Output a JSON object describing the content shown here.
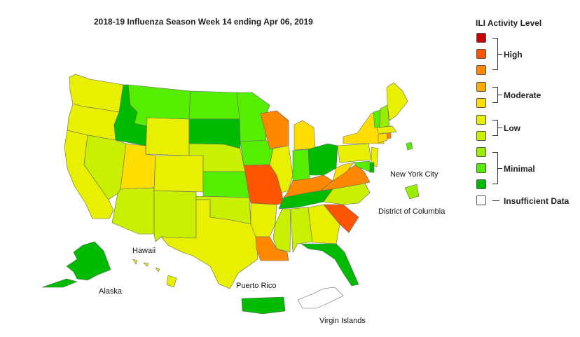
{
  "title": "2018-19 Influenza Season Week 14 ending Apr 06, 2019",
  "legend": {
    "title": "ILI Activity Level",
    "swatches": [
      {
        "color": "#cc0000"
      },
      {
        "color": "#ff5500"
      },
      {
        "color": "#ff8800"
      },
      {
        "color": "#ffaa00"
      },
      {
        "color": "#ffdd00"
      },
      {
        "color": "#e8f000"
      },
      {
        "color": "#c8f000"
      },
      {
        "color": "#99ee00"
      },
      {
        "color": "#55ee00"
      },
      {
        "color": "#00bb00"
      },
      {
        "color": "#ffffff"
      }
    ],
    "groups": {
      "high": "High",
      "moderate": "Moderate",
      "low": "Low",
      "minimal": "Minimal",
      "insufficient": "Insufficient Data"
    }
  },
  "labels": {
    "new_york_city": "New York City",
    "district_of_columbia": "District of Columbia",
    "hawaii": "Hawaii",
    "alaska": "Alaska",
    "puerto_rico": "Puerto Rico",
    "virgin_islands": "Virgin Islands"
  },
  "colors": {
    "low_yellow": "#e8f000",
    "low_lime": "#c8f000",
    "minimal_light": "#99ee00",
    "minimal": "#55ee00",
    "minimal_dark": "#00bb00",
    "moderate_yellow": "#ffdd00",
    "moderate_orange": "#ffaa00",
    "high_orange": "#ff8800",
    "high_red": "#ff5500",
    "insufficient": "#ffffff"
  },
  "states": [
    {
      "name": "Washington",
      "level": "low_yellow"
    },
    {
      "name": "Oregon",
      "level": "low_yellow"
    },
    {
      "name": "California",
      "level": "low_yellow"
    },
    {
      "name": "Nevada",
      "level": "low_lime"
    },
    {
      "name": "Idaho",
      "level": "minimal_dark"
    },
    {
      "name": "Montana",
      "level": "minimal"
    },
    {
      "name": "Wyoming",
      "level": "low_yellow"
    },
    {
      "name": "Utah",
      "level": "moderate_yellow"
    },
    {
      "name": "Arizona",
      "level": "low_lime"
    },
    {
      "name": "Colorado",
      "level": "low_yellow"
    },
    {
      "name": "New Mexico",
      "level": "low_lime"
    },
    {
      "name": "North Dakota",
      "level": "minimal"
    },
    {
      "name": "South Dakota",
      "level": "minimal_dark"
    },
    {
      "name": "Nebraska",
      "level": "low_lime"
    },
    {
      "name": "Kansas",
      "level": "minimal"
    },
    {
      "name": "Oklahoma",
      "level": "low_lime"
    },
    {
      "name": "Texas",
      "level": "low_yellow"
    },
    {
      "name": "Minnesota",
      "level": "minimal"
    },
    {
      "name": "Iowa",
      "level": "minimal"
    },
    {
      "name": "Missouri",
      "level": "high_red"
    },
    {
      "name": "Arkansas",
      "level": "low_yellow"
    },
    {
      "name": "Louisiana",
      "level": "high_orange"
    },
    {
      "name": "Wisconsin",
      "level": "high_orange"
    },
    {
      "name": "Illinois",
      "level": "low_yellow"
    },
    {
      "name": "Michigan",
      "level": "moderate_yellow"
    },
    {
      "name": "Indiana",
      "level": "minimal"
    },
    {
      "name": "Ohio",
      "level": "minimal_dark"
    },
    {
      "name": "Kentucky",
      "level": "high_orange"
    },
    {
      "name": "Tennessee",
      "level": "minimal_dark"
    },
    {
      "name": "Mississippi",
      "level": "low_lime"
    },
    {
      "name": "Alabama",
      "level": "low_lime"
    },
    {
      "name": "Georgia",
      "level": "low_yellow"
    },
    {
      "name": "Florida",
      "level": "minimal_dark"
    },
    {
      "name": "South Carolina",
      "level": "high_red"
    },
    {
      "name": "North Carolina",
      "level": "low_lime"
    },
    {
      "name": "Virginia",
      "level": "high_orange"
    },
    {
      "name": "West Virginia",
      "level": "moderate_yellow"
    },
    {
      "name": "Pennsylvania",
      "level": "low_yellow"
    },
    {
      "name": "New York",
      "level": "moderate_yellow"
    },
    {
      "name": "New Jersey",
      "level": "low_yellow"
    },
    {
      "name": "Delaware",
      "level": "minimal_dark"
    },
    {
      "name": "Maryland",
      "level": "minimal"
    },
    {
      "name": "Connecticut",
      "level": "moderate_yellow"
    },
    {
      "name": "Rhode Island",
      "level": "high_orange"
    },
    {
      "name": "Massachusetts",
      "level": "low_yellow"
    },
    {
      "name": "Vermont",
      "level": "minimal"
    },
    {
      "name": "New Hampshire",
      "level": "minimal_light"
    },
    {
      "name": "Maine",
      "level": "low_yellow"
    },
    {
      "name": "Alaska",
      "level": "minimal_dark"
    },
    {
      "name": "Hawaii",
      "level": "low_yellow"
    },
    {
      "name": "Puerto Rico",
      "level": "minimal_dark"
    },
    {
      "name": "Virgin Islands",
      "level": "insufficient"
    },
    {
      "name": "New York City",
      "level": "minimal_light"
    },
    {
      "name": "District of Columbia",
      "level": "minimal"
    }
  ]
}
